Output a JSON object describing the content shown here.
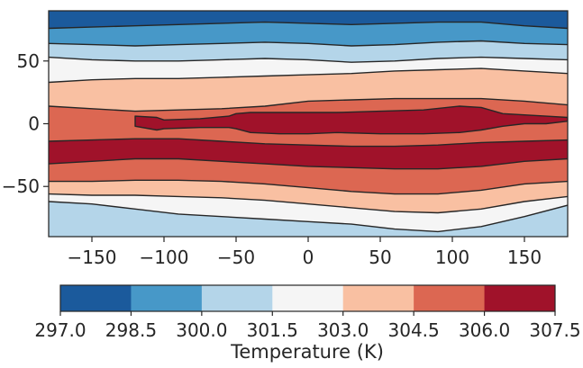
{
  "chart_data": {
    "type": "contour",
    "title": "",
    "xlabel": "",
    "ylabel": "",
    "xlim": [
      -180,
      180
    ],
    "ylim": [
      -90,
      90
    ],
    "x_ticks": [
      -150,
      -100,
      -50,
      0,
      50,
      100,
      150
    ],
    "y_ticks": [
      -50,
      0,
      50
    ],
    "x_tick_labels": [
      "−150",
      "−100",
      "−50",
      "0",
      "50",
      "100",
      "150"
    ],
    "y_tick_labels": [
      "−50",
      "0",
      "50"
    ],
    "contour_levels": [
      297.0,
      298.5,
      300.0,
      301.5,
      303.0,
      304.5,
      306.0,
      307.5
    ],
    "level_colors": [
      "#1b5a9c",
      "#4798c8",
      "#b4d5e9",
      "#f5f5f5",
      "#f9c0a2",
      "#dc6752",
      "#a0122a"
    ],
    "colorbar": {
      "label": "Temperature (K)",
      "tick_labels": [
        "297.0",
        "298.5",
        "300.0",
        "301.5",
        "303.0",
        "304.5",
        "306.0",
        "307.5"
      ],
      "orientation": "horizontal"
    },
    "contour_boundaries": {
      "x": [
        -180,
        -150,
        -120,
        -90,
        -60,
        -30,
        0,
        30,
        60,
        90,
        120,
        150,
        180
      ],
      "lines": [
        [
          76,
          77,
          78,
          79,
          80,
          81,
          80,
          79,
          80,
          81,
          81,
          78,
          76
        ],
        [
          64,
          63,
          62,
          63,
          64,
          65,
          64,
          62,
          63,
          65,
          66,
          64,
          63
        ],
        [
          53,
          51,
          50,
          50,
          51,
          52,
          51,
          49,
          50,
          52,
          53,
          52,
          51
        ],
        [
          33,
          35,
          36,
          36,
          37,
          38,
          39,
          40,
          42,
          43,
          44,
          42,
          40
        ],
        [
          14,
          12,
          10,
          11,
          12,
          14,
          18,
          19,
          20,
          20,
          20,
          18,
          15
        ],
        [
          -14,
          -13,
          -12,
          -12,
          -14,
          -16,
          -17,
          -18,
          -18,
          -17,
          -15,
          -14,
          -13
        ],
        [
          -32,
          -30,
          -28,
          -28,
          -30,
          -32,
          -34,
          -35,
          -36,
          -36,
          -34,
          -30,
          -28
        ],
        [
          -46,
          -46,
          -45,
          -45,
          -46,
          -48,
          -51,
          -54,
          -56,
          -56,
          -53,
          -48,
          -46
        ],
        [
          -56,
          -57,
          -57,
          -58,
          -59,
          -61,
          -64,
          -67,
          -70,
          -71,
          -68,
          -62,
          -58
        ],
        [
          -62,
          -64,
          -68,
          -72,
          -74,
          -76,
          -78,
          -80,
          -84,
          -86,
          -82,
          -74,
          -65
        ]
      ],
      "band_levels_north_to_south": [
        0,
        1,
        2,
        3,
        4,
        5,
        6,
        5,
        4,
        3,
        2,
        1,
        0
      ],
      "core_region": {
        "x": [
          -120,
          -105,
          -100,
          -75,
          -55,
          -50,
          -40,
          -20,
          0,
          20,
          50,
          80,
          105,
          120,
          135,
          150,
          165,
          180
        ],
        "north": [
          6,
          5,
          3,
          4,
          6,
          8,
          9,
          9,
          9,
          9,
          10,
          11,
          14,
          13,
          8,
          7,
          6,
          5
        ],
        "south": [
          -2,
          -5,
          -4,
          -3,
          -3,
          -4,
          -7,
          -8,
          -8,
          -7,
          -8,
          -8,
          -7,
          -5,
          -2,
          0,
          0,
          2
        ]
      }
    }
  }
}
